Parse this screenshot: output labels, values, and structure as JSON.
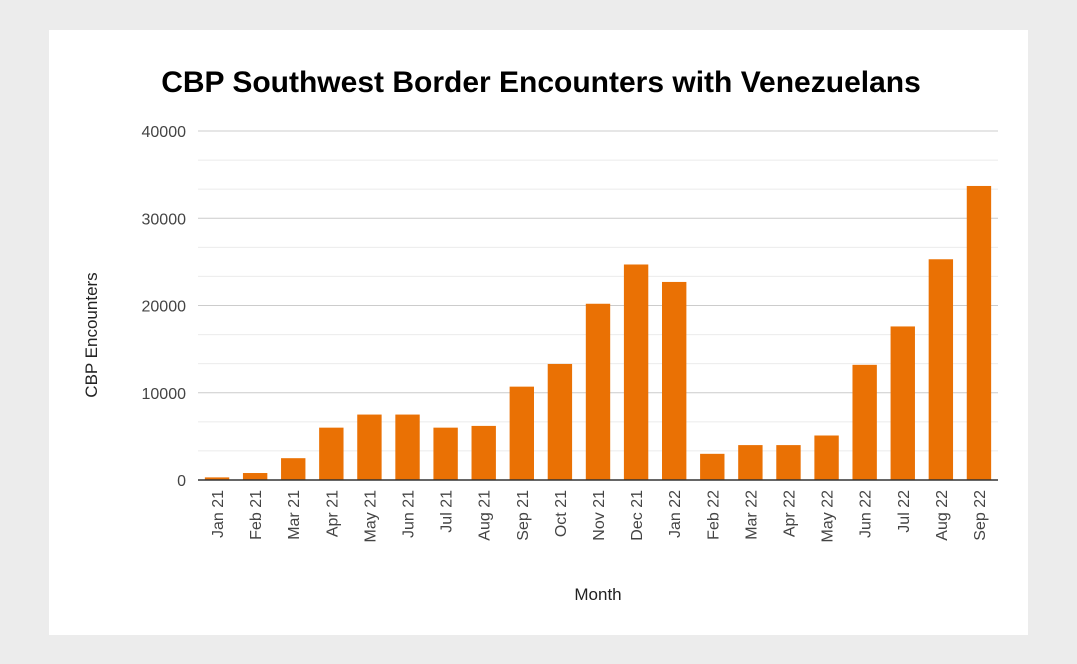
{
  "chart_data": {
    "type": "bar",
    "title": "CBP Southwest Border Encounters with Venezuelans",
    "xlabel": "Month",
    "ylabel": "CBP Encounters",
    "ylim": [
      0,
      40000
    ],
    "yticks": [
      "0",
      "10000",
      "20000",
      "30000",
      "40000"
    ],
    "ytick_values": [
      0,
      10000,
      20000,
      30000,
      40000
    ],
    "minor_gridlines": true,
    "bar_color": "#ea7104",
    "categories": [
      "Jan 21",
      "Feb 21",
      "Mar 21",
      "Apr 21",
      "May 21",
      "Jun 21",
      "Jul 21",
      "Aug 21",
      "Sep 21",
      "Oct 21",
      "Nov 21",
      "Dec 21",
      "Jan 22",
      "Feb 22",
      "Mar 22",
      "Apr 22",
      "May 22",
      "Jun 22",
      "Jul 22",
      "Aug 22",
      "Sep 22"
    ],
    "values": [
      300,
      800,
      2500,
      6000,
      7500,
      7500,
      6000,
      6200,
      10700,
      13300,
      20200,
      24700,
      22700,
      3000,
      4000,
      4000,
      5100,
      13200,
      17600,
      25300,
      33700
    ]
  }
}
